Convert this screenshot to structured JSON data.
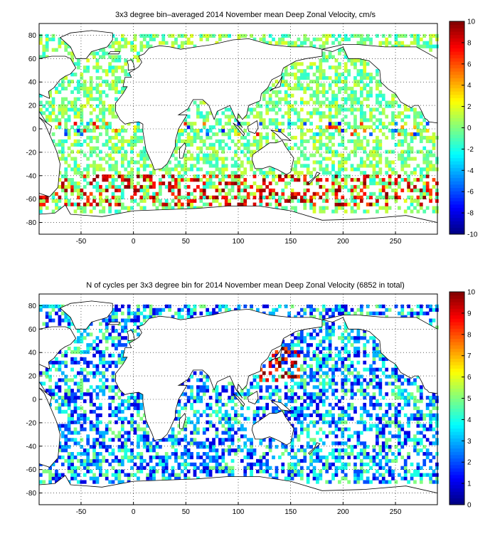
{
  "colors": {
    "coast": "#000000",
    "grid": "#000000",
    "background": "#ffffff"
  },
  "chart_data": [
    {
      "type": "heatmap",
      "title": "3x3 degree bin–averaged 2014 November mean Deep Zonal Velocity, cm/s",
      "xlabel": "",
      "ylabel": "",
      "xlim": [
        -90,
        290
      ],
      "ylim": [
        -90,
        90
      ],
      "xticks": [
        -50,
        0,
        50,
        100,
        150,
        200,
        250
      ],
      "yticks": [
        -80,
        -60,
        -40,
        -20,
        0,
        20,
        40,
        60,
        80
      ],
      "grid": "dotted",
      "colorbar": {
        "min": -10,
        "max": 10,
        "ticks": [
          -10,
          -8,
          -6,
          -4,
          -2,
          0,
          2,
          4,
          6,
          8,
          10
        ],
        "colormap": "jet"
      },
      "bin_size_deg": 3,
      "field": "velocity"
    },
    {
      "type": "heatmap",
      "title": "N of cycles per 3x3 degree bin for 2014 November mean Deep Zonal Velocity (6852 in total)",
      "xlabel": "",
      "ylabel": "",
      "xlim": [
        -90,
        290
      ],
      "ylim": [
        -90,
        90
      ],
      "xticks": [
        -50,
        0,
        50,
        100,
        150,
        200,
        250
      ],
      "yticks": [
        -80,
        -60,
        -40,
        -20,
        0,
        20,
        40,
        60,
        80
      ],
      "grid": "dotted",
      "colorbar": {
        "min": 0,
        "max": 10,
        "ticks": [
          0,
          1,
          2,
          3,
          4,
          5,
          6,
          7,
          8,
          9,
          10
        ],
        "colormap": "jet"
      },
      "bin_size_deg": 3,
      "field": "count"
    }
  ]
}
